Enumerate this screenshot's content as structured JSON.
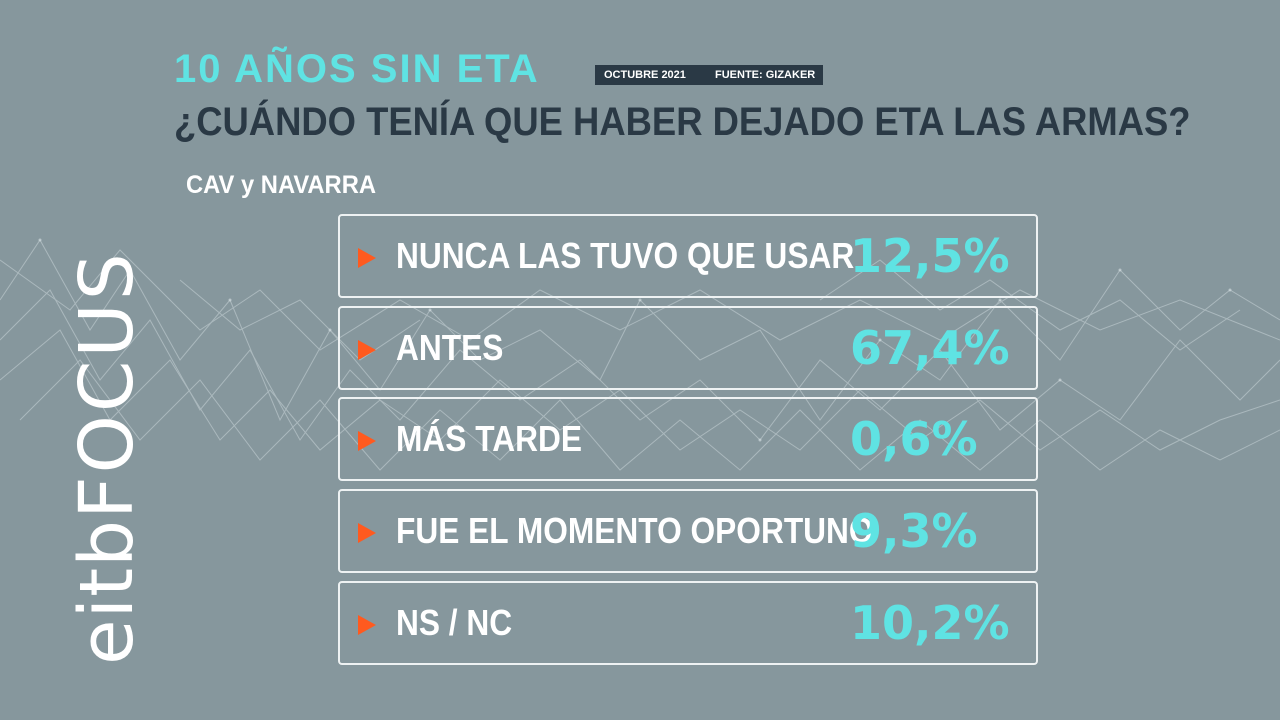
{
  "header": {
    "kicker": "10 AÑOS SIN ETA",
    "date": "OCTUBRE 2021",
    "source": "FUENTE: GIZAKER",
    "question": "¿CUÁNDO TENÍA QUE HABER DEJADO ETA LAS ARMAS?",
    "region": "CAV y NAVARRA"
  },
  "logo": {
    "light": "eitb",
    "bold": "FOCUS"
  },
  "answers": [
    {
      "label": "NUNCA LAS TUVO QUE USAR",
      "value": "12,5%"
    },
    {
      "label": "ANTES",
      "value": "67,4%"
    },
    {
      "label": "MÁS TARDE",
      "value": "0,6%"
    },
    {
      "label": "FUE EL MOMENTO OPORTUNO",
      "value": "9,3%"
    },
    {
      "label": "NS / NC",
      "value": "10,2%"
    }
  ],
  "colors": {
    "background": "#86979d",
    "accent": "#5fe3e3",
    "arrow": "#ff5a1f",
    "dark": "#2a3945"
  }
}
